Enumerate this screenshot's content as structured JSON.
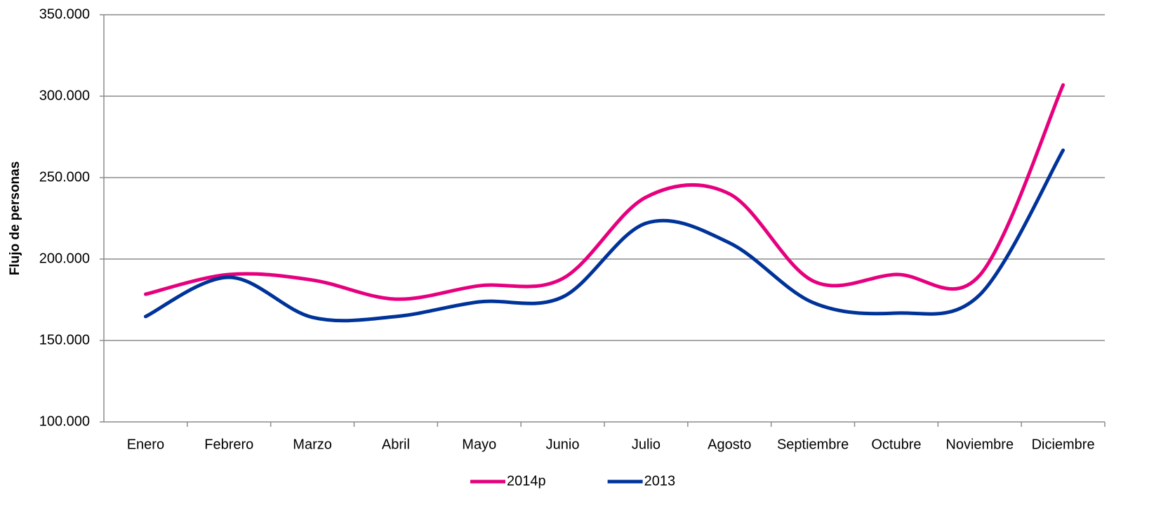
{
  "chart_data": {
    "type": "line",
    "y_label": "Flujo de personas",
    "categories": [
      "Enero",
      "Febrero",
      "Marzo",
      "Abril",
      "Mayo",
      "Junio",
      "Julio",
      "Agosto",
      "Septiembre",
      "Octubre",
      "Noviembre",
      "Diciembre"
    ],
    "series": [
      {
        "name": "2014p",
        "color": "#e6007e",
        "values": [
          178400,
          190500,
          187100,
          175400,
          183600,
          188000,
          238000,
          240000,
          186600,
          190500,
          190000,
          306900
        ]
      },
      {
        "name": "2013",
        "color": "#003399",
        "values": [
          164700,
          188800,
          164200,
          164700,
          173700,
          176700,
          222000,
          209900,
          173300,
          166800,
          178000,
          266800
        ]
      }
    ],
    "ylim": [
      100000,
      350000
    ],
    "yticks": [
      {
        "value": 100000,
        "label": "100.000"
      },
      {
        "value": 150000,
        "label": "150.000"
      },
      {
        "value": 200000,
        "label": "200.000"
      },
      {
        "value": 250000,
        "label": "250.000"
      },
      {
        "value": 300000,
        "label": "300.000"
      },
      {
        "value": 350000,
        "label": "350.000"
      }
    ],
    "grid": true,
    "smooth": true,
    "legend": "bottom"
  }
}
